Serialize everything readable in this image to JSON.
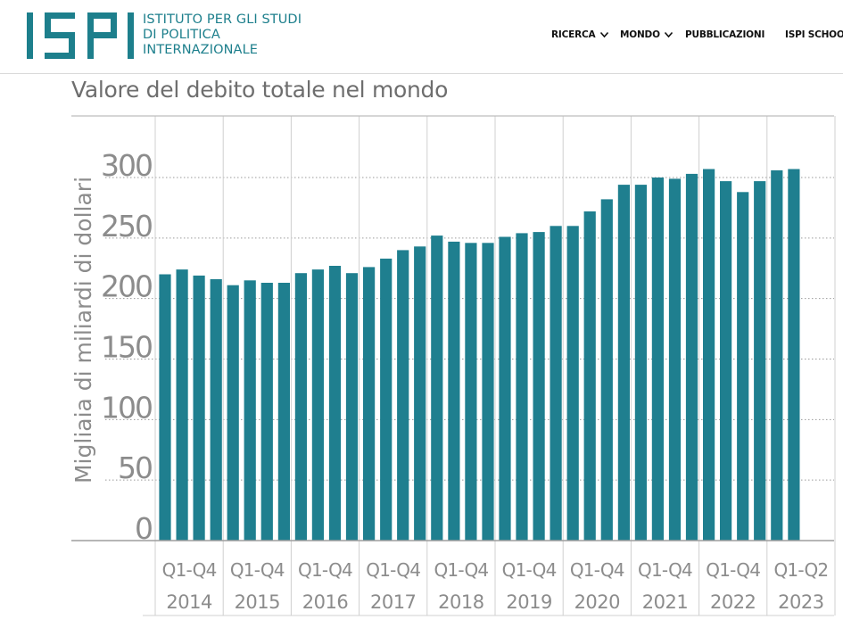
{
  "header": {
    "logo_letters": "ISPI",
    "logo_text_lines": [
      "ISTITUTO PER GLI STUDI",
      "DI POLITICA",
      "INTERNAZIONALE"
    ],
    "nav": [
      {
        "label": "RICERCA",
        "has_dropdown": true,
        "icon": "chevron-down-icon"
      },
      {
        "label": "MONDO",
        "has_dropdown": true,
        "icon": "chevron-down-icon"
      },
      {
        "label": "PUBBLICAZIONI",
        "has_dropdown": false
      },
      {
        "label": "ISPI SCHOOL",
        "has_dropdown": false
      }
    ],
    "brand_color": "#1d7f8c"
  },
  "chart_data": {
    "type": "bar",
    "title": "Valore del debito totale nel mondo",
    "ylabel": "Migliaia di miliardi di dollari",
    "xlabel": "",
    "ylim": [
      0,
      350
    ],
    "yticks": [
      0,
      50,
      100,
      150,
      200,
      250,
      300
    ],
    "grid": true,
    "bar_color": "#1f7f8f",
    "groups": [
      {
        "label_line1": "Q1-Q4",
        "label_line2": "2014",
        "quarters": 4
      },
      {
        "label_line1": "Q1-Q4",
        "label_line2": "2015",
        "quarters": 4
      },
      {
        "label_line1": "Q1-Q4",
        "label_line2": "2016",
        "quarters": 4
      },
      {
        "label_line1": "Q1-Q4",
        "label_line2": "2017",
        "quarters": 4
      },
      {
        "label_line1": "Q1-Q4",
        "label_line2": "2018",
        "quarters": 4
      },
      {
        "label_line1": "Q1-Q4",
        "label_line2": "2019",
        "quarters": 4
      },
      {
        "label_line1": "Q1-Q4",
        "label_line2": "2020",
        "quarters": 4
      },
      {
        "label_line1": "Q1-Q4",
        "label_line2": "2021",
        "quarters": 4
      },
      {
        "label_line1": "Q1-Q4",
        "label_line2": "2022",
        "quarters": 4
      },
      {
        "label_line1": "Q1-Q2",
        "label_line2": "2023",
        "quarters": 2
      }
    ],
    "values": [
      220,
      224,
      219,
      216,
      211,
      215,
      213,
      213,
      221,
      224,
      227,
      221,
      226,
      233,
      240,
      243,
      252,
      247,
      246,
      246,
      251,
      254,
      255,
      260,
      260,
      272,
      282,
      294,
      294,
      300,
      299,
      303,
      307,
      297,
      288,
      297,
      306,
      307
    ]
  }
}
